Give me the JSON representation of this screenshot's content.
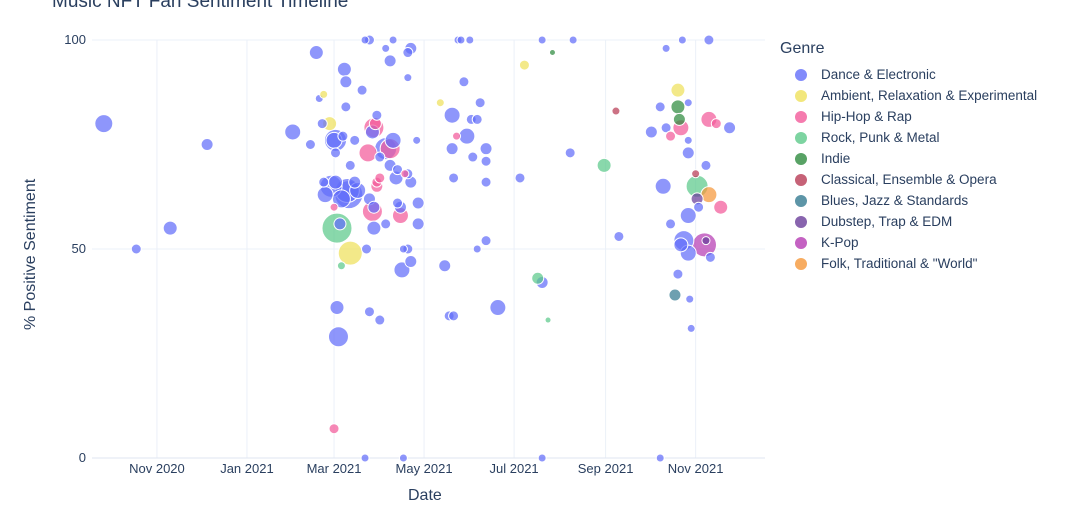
{
  "chart_data": {
    "type": "scatter",
    "title": "Music NFT Fan Sentiment Timeline",
    "xlabel": "Date",
    "ylabel": "% Positive Sentiment",
    "x_ticks": [
      "Nov 2020",
      "Jan 2021",
      "Mar 2021",
      "May 2021",
      "Jul 2021",
      "Sep 2021",
      "Nov 2021"
    ],
    "x_tick_dates": [
      "2020-11-01",
      "2021-01-01",
      "2021-03-01",
      "2021-05-01",
      "2021-07-01",
      "2021-09-01",
      "2021-11-01"
    ],
    "y_ticks": [
      "0",
      "50",
      "100"
    ],
    "ylim": [
      0,
      100
    ],
    "xlim": [
      "2020-09-18",
      "2021-12-18"
    ],
    "grid": true,
    "legend_title": "Genre",
    "legend_position": "right",
    "series": [
      {
        "name": "Dance & Electronic",
        "color": "#636efa",
        "points": [
          {
            "x": "2020-09-26",
            "y": 80,
            "s": 9
          },
          {
            "x": "2020-10-18",
            "y": 50,
            "s": 5
          },
          {
            "x": "2020-11-10",
            "y": 55,
            "s": 7
          },
          {
            "x": "2020-12-05",
            "y": 75,
            "s": 6
          },
          {
            "x": "2021-02-01",
            "y": 78,
            "s": 8
          },
          {
            "x": "2021-02-13",
            "y": 75,
            "s": 5
          },
          {
            "x": "2021-02-17",
            "y": 97,
            "s": 7
          },
          {
            "x": "2021-02-19",
            "y": 86,
            "s": 4
          },
          {
            "x": "2021-02-21",
            "y": 80,
            "s": 5
          },
          {
            "x": "2021-02-22",
            "y": 66,
            "s": 5
          },
          {
            "x": "2021-02-23",
            "y": 63,
            "s": 8
          },
          {
            "x": "2021-02-27",
            "y": 65,
            "s": 11
          },
          {
            "x": "2021-03-01",
            "y": 76,
            "s": 8
          },
          {
            "x": "2021-03-02",
            "y": 76,
            "s": 11
          },
          {
            "x": "2021-03-02",
            "y": 66,
            "s": 7
          },
          {
            "x": "2021-03-02",
            "y": 73,
            "s": 5
          },
          {
            "x": "2021-03-03",
            "y": 36,
            "s": 7
          },
          {
            "x": "2021-03-04",
            "y": 29,
            "s": 10
          },
          {
            "x": "2021-03-05",
            "y": 56,
            "s": 6
          },
          {
            "x": "2021-03-06",
            "y": 62,
            "s": 9
          },
          {
            "x": "2021-03-07",
            "y": 77,
            "s": 5
          },
          {
            "x": "2021-03-08",
            "y": 93,
            "s": 7
          },
          {
            "x": "2021-03-09",
            "y": 90,
            "s": 6
          },
          {
            "x": "2021-03-09",
            "y": 84,
            "s": 5
          },
          {
            "x": "2021-03-10",
            "y": 64,
            "s": 12
          },
          {
            "x": "2021-03-11",
            "y": 63,
            "s": 14
          },
          {
            "x": "2021-03-12",
            "y": 70,
            "s": 5
          },
          {
            "x": "2021-03-15",
            "y": 76,
            "s": 5
          },
          {
            "x": "2021-03-15",
            "y": 66,
            "s": 6
          },
          {
            "x": "2021-03-17",
            "y": 64,
            "s": 8
          },
          {
            "x": "2021-03-20",
            "y": 88,
            "s": 5
          },
          {
            "x": "2021-03-22",
            "y": 100,
            "s": 4
          },
          {
            "x": "2021-03-22",
            "y": 0,
            "s": 4
          },
          {
            "x": "2021-03-23",
            "y": 50,
            "s": 5
          },
          {
            "x": "2021-03-25",
            "y": 100,
            "s": 5
          },
          {
            "x": "2021-03-25",
            "y": 62,
            "s": 6
          },
          {
            "x": "2021-03-25",
            "y": 35,
            "s": 5
          },
          {
            "x": "2021-03-27",
            "y": 78,
            "s": 7
          },
          {
            "x": "2021-03-28",
            "y": 55,
            "s": 7
          },
          {
            "x": "2021-03-28",
            "y": 60,
            "s": 6
          },
          {
            "x": "2021-03-30",
            "y": 82,
            "s": 5
          },
          {
            "x": "2021-04-01",
            "y": 72,
            "s": 5
          },
          {
            "x": "2021-04-01",
            "y": 33,
            "s": 5
          },
          {
            "x": "2021-04-05",
            "y": 98,
            "s": 4
          },
          {
            "x": "2021-04-05",
            "y": 74,
            "s": 11
          },
          {
            "x": "2021-04-05",
            "y": 56,
            "s": 5
          },
          {
            "x": "2021-04-08",
            "y": 95,
            "s": 6
          },
          {
            "x": "2021-04-08",
            "y": 70,
            "s": 6
          },
          {
            "x": "2021-04-10",
            "y": 100,
            "s": 4
          },
          {
            "x": "2021-04-10",
            "y": 76,
            "s": 8
          },
          {
            "x": "2021-04-12",
            "y": 67,
            "s": 7
          },
          {
            "x": "2021-04-13",
            "y": 69,
            "s": 5
          },
          {
            "x": "2021-04-13",
            "y": 61,
            "s": 5
          },
          {
            "x": "2021-04-15",
            "y": 60,
            "s": 6
          },
          {
            "x": "2021-04-16",
            "y": 45,
            "s": 8
          },
          {
            "x": "2021-04-17",
            "y": 50,
            "s": 4
          },
          {
            "x": "2021-04-17",
            "y": 0,
            "s": 4
          },
          {
            "x": "2021-04-20",
            "y": 97,
            "s": 5
          },
          {
            "x": "2021-04-20",
            "y": 91,
            "s": 4
          },
          {
            "x": "2021-04-20",
            "y": 68,
            "s": 5
          },
          {
            "x": "2021-04-20",
            "y": 50,
            "s": 5
          },
          {
            "x": "2021-04-22",
            "y": 98,
            "s": 6
          },
          {
            "x": "2021-04-22",
            "y": 66,
            "s": 6
          },
          {
            "x": "2021-04-22",
            "y": 47,
            "s": 6
          },
          {
            "x": "2021-04-26",
            "y": 76,
            "s": 4
          },
          {
            "x": "2021-04-27",
            "y": 61,
            "s": 6
          },
          {
            "x": "2021-04-27",
            "y": 56,
            "s": 6
          },
          {
            "x": "2021-05-15",
            "y": 46,
            "s": 6
          },
          {
            "x": "2021-05-18",
            "y": 34,
            "s": 5
          },
          {
            "x": "2021-05-20",
            "y": 82,
            "s": 8
          },
          {
            "x": "2021-05-20",
            "y": 74,
            "s": 6
          },
          {
            "x": "2021-05-21",
            "y": 67,
            "s": 5
          },
          {
            "x": "2021-05-21",
            "y": 34,
            "s": 5
          },
          {
            "x": "2021-05-24",
            "y": 100,
            "s": 4
          },
          {
            "x": "2021-05-26",
            "y": 100,
            "s": 4
          },
          {
            "x": "2021-05-28",
            "y": 90,
            "s": 5
          },
          {
            "x": "2021-05-30",
            "y": 77,
            "s": 8
          },
          {
            "x": "2021-06-01",
            "y": 100,
            "s": 4
          },
          {
            "x": "2021-06-02",
            "y": 81,
            "s": 5
          },
          {
            "x": "2021-06-03",
            "y": 72,
            "s": 5
          },
          {
            "x": "2021-06-06",
            "y": 50,
            "s": 4
          },
          {
            "x": "2021-06-06",
            "y": 81,
            "s": 5
          },
          {
            "x": "2021-06-08",
            "y": 85,
            "s": 5
          },
          {
            "x": "2021-06-12",
            "y": 74,
            "s": 6
          },
          {
            "x": "2021-06-12",
            "y": 66,
            "s": 5
          },
          {
            "x": "2021-06-12",
            "y": 52,
            "s": 5
          },
          {
            "x": "2021-06-12",
            "y": 71,
            "s": 5
          },
          {
            "x": "2021-06-20",
            "y": 36,
            "s": 8
          },
          {
            "x": "2021-07-05",
            "y": 67,
            "s": 5
          },
          {
            "x": "2021-07-20",
            "y": 42,
            "s": 6
          },
          {
            "x": "2021-07-20",
            "y": 100,
            "s": 4
          },
          {
            "x": "2021-07-20",
            "y": 0,
            "s": 4
          },
          {
            "x": "2021-08-10",
            "y": 100,
            "s": 4
          },
          {
            "x": "2021-08-08",
            "y": 73,
            "s": 5
          },
          {
            "x": "2021-09-10",
            "y": 53,
            "s": 5
          },
          {
            "x": "2021-10-02",
            "y": 78,
            "s": 6
          },
          {
            "x": "2021-10-08",
            "y": 84,
            "s": 5
          },
          {
            "x": "2021-10-08",
            "y": 0,
            "s": 4
          },
          {
            "x": "2021-10-10",
            "y": 65,
            "s": 8
          },
          {
            "x": "2021-10-12",
            "y": 79,
            "s": 5
          },
          {
            "x": "2021-10-12",
            "y": 98,
            "s": 4
          },
          {
            "x": "2021-10-15",
            "y": 56,
            "s": 5
          },
          {
            "x": "2021-10-20",
            "y": 44,
            "s": 5
          },
          {
            "x": "2021-10-22",
            "y": 51,
            "s": 7
          },
          {
            "x": "2021-10-23",
            "y": 100,
            "s": 4
          },
          {
            "x": "2021-10-24",
            "y": 52,
            "s": 10
          },
          {
            "x": "2021-10-27",
            "y": 49,
            "s": 8
          },
          {
            "x": "2021-10-27",
            "y": 58,
            "s": 8
          },
          {
            "x": "2021-10-27",
            "y": 73,
            "s": 6
          },
          {
            "x": "2021-10-27",
            "y": 76,
            "s": 4
          },
          {
            "x": "2021-10-27",
            "y": 85,
            "s": 4
          },
          {
            "x": "2021-10-28",
            "y": 38,
            "s": 4
          },
          {
            "x": "2021-10-29",
            "y": 31,
            "s": 4
          },
          {
            "x": "2021-11-03",
            "y": 60,
            "s": 5
          },
          {
            "x": "2021-11-08",
            "y": 70,
            "s": 5
          },
          {
            "x": "2021-11-10",
            "y": 100,
            "s": 5
          },
          {
            "x": "2021-11-11",
            "y": 48,
            "s": 5
          },
          {
            "x": "2021-11-24",
            "y": 79,
            "s": 6
          }
        ]
      },
      {
        "name": "Ambient, Relaxation & Experimental",
        "color": "#efe15b",
        "points": [
          {
            "x": "2021-02-22",
            "y": 87,
            "s": 4
          },
          {
            "x": "2021-02-26",
            "y": 80,
            "s": 7
          },
          {
            "x": "2021-03-12",
            "y": 49,
            "s": 12
          },
          {
            "x": "2021-05-12",
            "y": 85,
            "s": 4
          },
          {
            "x": "2021-07-08",
            "y": 94,
            "s": 5
          },
          {
            "x": "2021-10-20",
            "y": 88,
            "s": 7
          }
        ]
      },
      {
        "name": "Hip-Hop & Rap",
        "color": "#f25a9a",
        "points": [
          {
            "x": "2021-03-01",
            "y": 60,
            "s": 4
          },
          {
            "x": "2021-03-01",
            "y": 7,
            "s": 5
          },
          {
            "x": "2021-03-24",
            "y": 73,
            "s": 9
          },
          {
            "x": "2021-03-27",
            "y": 59,
            "s": 10
          },
          {
            "x": "2021-03-28",
            "y": 79,
            "s": 10
          },
          {
            "x": "2021-03-29",
            "y": 80,
            "s": 6
          },
          {
            "x": "2021-03-30",
            "y": 65,
            "s": 6
          },
          {
            "x": "2021-03-30",
            "y": 66,
            "s": 5
          },
          {
            "x": "2021-04-01",
            "y": 67,
            "s": 5
          },
          {
            "x": "2021-04-08",
            "y": 74,
            "s": 10
          },
          {
            "x": "2021-04-15",
            "y": 58,
            "s": 8
          },
          {
            "x": "2021-04-18",
            "y": 68,
            "s": 4
          },
          {
            "x": "2021-05-23",
            "y": 77,
            "s": 4
          },
          {
            "x": "2021-10-15",
            "y": 77,
            "s": 5
          },
          {
            "x": "2021-10-22",
            "y": 79,
            "s": 8
          },
          {
            "x": "2021-11-10",
            "y": 81,
            "s": 8
          },
          {
            "x": "2021-11-15",
            "y": 80,
            "s": 5
          },
          {
            "x": "2021-11-18",
            "y": 60,
            "s": 7
          }
        ]
      },
      {
        "name": "Rock, Punk & Metal",
        "color": "#5cc98a",
        "points": [
          {
            "x": "2021-03-03",
            "y": 55,
            "s": 15
          },
          {
            "x": "2021-03-06",
            "y": 46,
            "s": 4
          },
          {
            "x": "2021-07-17",
            "y": 43,
            "s": 6
          },
          {
            "x": "2021-07-24",
            "y": 33,
            "s": 3
          },
          {
            "x": "2021-08-31",
            "y": 70,
            "s": 7
          },
          {
            "x": "2021-11-02",
            "y": 65,
            "s": 11
          }
        ]
      },
      {
        "name": "Indie",
        "color": "#2e8b3e",
        "points": [
          {
            "x": "2021-07-27",
            "y": 97,
            "s": 3
          },
          {
            "x": "2021-10-20",
            "y": 84,
            "s": 7
          },
          {
            "x": "2021-10-21",
            "y": 81,
            "s": 6
          }
        ]
      },
      {
        "name": "Classical, Ensemble & Opera",
        "color": "#b83b55",
        "points": [
          {
            "x": "2021-09-08",
            "y": 83,
            "s": 4
          },
          {
            "x": "2021-11-01",
            "y": 68,
            "s": 4
          }
        ]
      },
      {
        "name": "Blues, Jazz & Standards",
        "color": "#347b91",
        "points": [
          {
            "x": "2021-10-18",
            "y": 39,
            "s": 6
          }
        ]
      },
      {
        "name": "Dubstep, Trap & EDM",
        "color": "#6a3d9a",
        "points": [
          {
            "x": "2021-11-02",
            "y": 62,
            "s": 6
          },
          {
            "x": "2021-11-08",
            "y": 52,
            "s": 4
          }
        ]
      },
      {
        "name": "K-Pop",
        "color": "#b53bb3",
        "points": [
          {
            "x": "2021-11-07",
            "y": 51,
            "s": 12
          }
        ]
      },
      {
        "name": "Folk, Traditional & \"World\"",
        "color": "#f5973a",
        "points": [
          {
            "x": "2021-11-10",
            "y": 63,
            "s": 8
          }
        ]
      }
    ]
  }
}
